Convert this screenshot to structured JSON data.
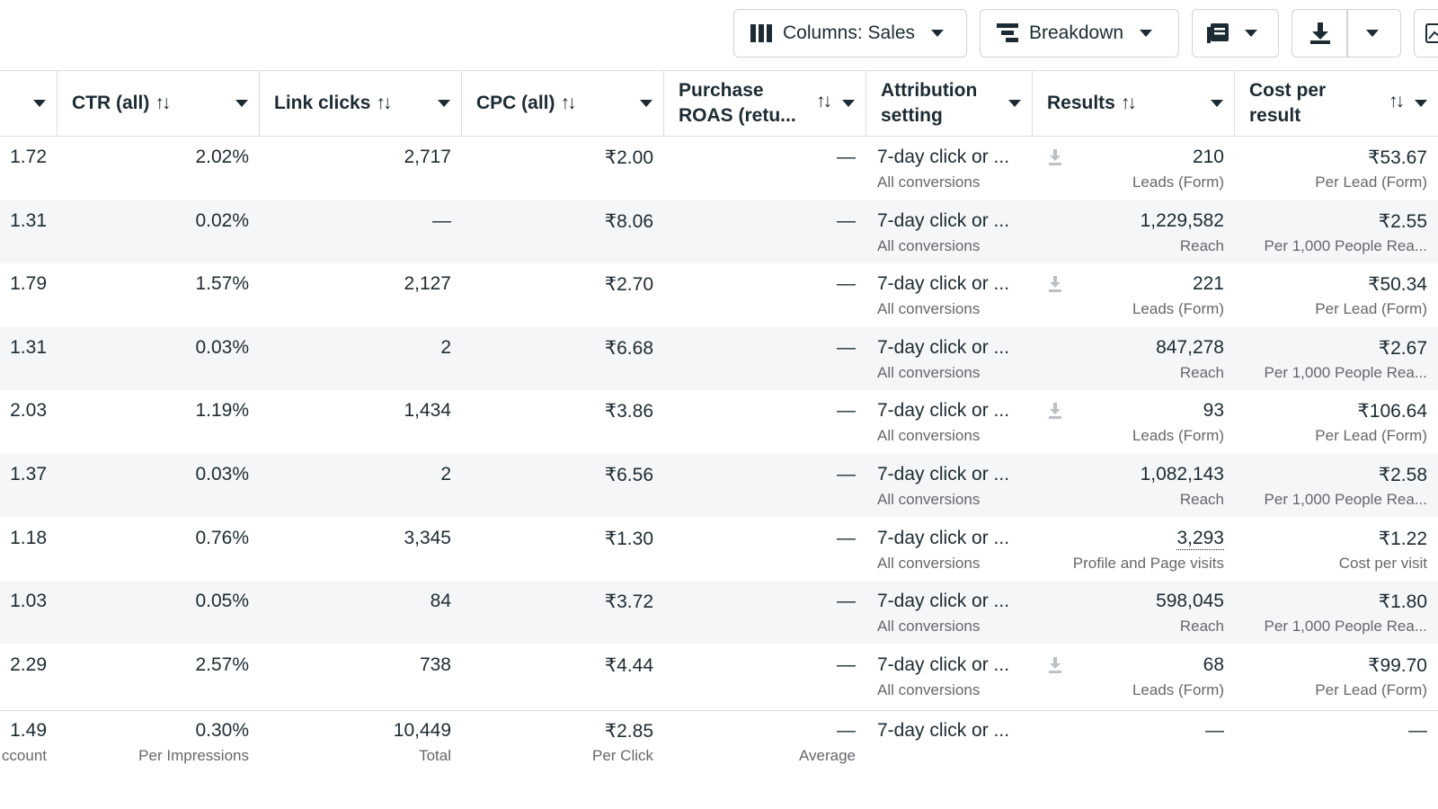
{
  "toolbar": {
    "columns_label": "Columns: Sales",
    "breakdown_label": "Breakdown"
  },
  "headers": {
    "cpm": "",
    "ctr": "CTR (all)",
    "link_clicks": "Link clicks",
    "cpc": "CPC (all)",
    "roas_line1": "Purchase",
    "roas_line2": "ROAS (retu...",
    "attr_line1": "Attribution",
    "attr_line2": "setting",
    "results": "Results",
    "cpr_line1": "Cost per",
    "cpr_line2": "result",
    "sort_glyph": "↑↓"
  },
  "rows": [
    {
      "freq": "1.72",
      "ctr": "2.02%",
      "clicks": "2,717",
      "cpc": "₹2.00",
      "roas": "—",
      "attr": "7-day click or ...",
      "attr_sub": "All conversions",
      "result": "210",
      "result_sub": "Leads (Form)",
      "cpr": "₹53.67",
      "cpr_sub": "Per Lead (Form)",
      "download": true
    },
    {
      "freq": "1.31",
      "ctr": "0.02%",
      "clicks": "—",
      "cpc": "₹8.06",
      "roas": "—",
      "attr": "7-day click or ...",
      "attr_sub": "All conversions",
      "result": "1,229,582",
      "result_sub": "Reach",
      "cpr": "₹2.55",
      "cpr_sub": "Per 1,000 People Rea...",
      "download": false
    },
    {
      "freq": "1.79",
      "ctr": "1.57%",
      "clicks": "2,127",
      "cpc": "₹2.70",
      "roas": "—",
      "attr": "7-day click or ...",
      "attr_sub": "All conversions",
      "result": "221",
      "result_sub": "Leads (Form)",
      "cpr": "₹50.34",
      "cpr_sub": "Per Lead (Form)",
      "download": true
    },
    {
      "freq": "1.31",
      "ctr": "0.03%",
      "clicks": "2",
      "cpc": "₹6.68",
      "roas": "—",
      "attr": "7-day click or ...",
      "attr_sub": "All conversions",
      "result": "847,278",
      "result_sub": "Reach",
      "cpr": "₹2.67",
      "cpr_sub": "Per 1,000 People Rea...",
      "download": false
    },
    {
      "freq": "2.03",
      "ctr": "1.19%",
      "clicks": "1,434",
      "cpc": "₹3.86",
      "roas": "—",
      "attr": "7-day click or ...",
      "attr_sub": "All conversions",
      "result": "93",
      "result_sub": "Leads (Form)",
      "cpr": "₹106.64",
      "cpr_sub": "Per Lead (Form)",
      "download": true
    },
    {
      "freq": "1.37",
      "ctr": "0.03%",
      "clicks": "2",
      "cpc": "₹6.56",
      "roas": "—",
      "attr": "7-day click or ...",
      "attr_sub": "All conversions",
      "result": "1,082,143",
      "result_sub": "Reach",
      "cpr": "₹2.58",
      "cpr_sub": "Per 1,000 People Rea...",
      "download": false
    },
    {
      "freq": "1.18",
      "ctr": "0.76%",
      "clicks": "3,345",
      "cpc": "₹1.30",
      "roas": "—",
      "attr": "7-day click or ...",
      "attr_sub": "All conversions",
      "result": "3,293",
      "result_sub": "Profile and Page visits",
      "cpr": "₹1.22",
      "cpr_sub": "Cost per visit",
      "download": false
    },
    {
      "freq": "1.03",
      "ctr": "0.05%",
      "clicks": "84",
      "cpc": "₹3.72",
      "roas": "—",
      "attr": "7-day click or ...",
      "attr_sub": "All conversions",
      "result": "598,045",
      "result_sub": "Reach",
      "cpr": "₹1.80",
      "cpr_sub": "Per 1,000 People Rea...",
      "download": false
    },
    {
      "freq": "2.29",
      "ctr": "2.57%",
      "clicks": "738",
      "cpc": "₹4.44",
      "roas": "—",
      "attr": "7-day click or ...",
      "attr_sub": "All conversions",
      "result": "68",
      "result_sub": "Leads (Form)",
      "cpr": "₹99.70",
      "cpr_sub": "Per Lead (Form)",
      "download": true
    }
  ],
  "totals": {
    "freq": "1.49",
    "freq_sub": "ccount",
    "ctr": "0.30%",
    "ctr_sub": "Per Impressions",
    "clicks": "10,449",
    "clicks_sub": "Total",
    "cpc": "₹2.85",
    "cpc_sub": "Per Click",
    "roas": "—",
    "roas_sub": "Average",
    "attr": "7-day click or ...",
    "result": "—",
    "cpr": "—"
  },
  "colors": {
    "text": "#1c2b33",
    "muted": "#65676b",
    "border": "#dadde1",
    "alt_row": "#f5f6f7"
  }
}
